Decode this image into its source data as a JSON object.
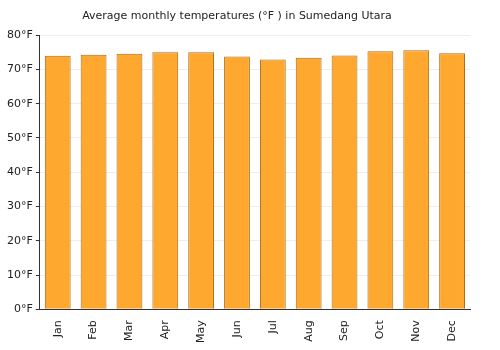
{
  "chart_data": {
    "type": "bar",
    "title": "Average monthly temperatures (°F ) in Sumedang Utara",
    "categories": [
      "Jan",
      "Feb",
      "Mar",
      "Apr",
      "May",
      "Jun",
      "Jul",
      "Aug",
      "Sep",
      "Oct",
      "Nov",
      "Dec"
    ],
    "values": [
      74.0,
      74.3,
      74.6,
      75.0,
      75.0,
      73.8,
      72.9,
      73.4,
      74.1,
      75.3,
      75.6,
      74.7
    ],
    "color": "#ffa830",
    "ylim": [
      0,
      80
    ],
    "yticks": [
      {
        "value": 0,
        "label": "0°F"
      },
      {
        "value": 10,
        "label": "10°F"
      },
      {
        "value": 20,
        "label": "20°F"
      },
      {
        "value": 30,
        "label": "30°F"
      },
      {
        "value": 40,
        "label": "40°F"
      },
      {
        "value": 50,
        "label": "50°F"
      },
      {
        "value": 60,
        "label": "60°F"
      },
      {
        "value": 70,
        "label": "70°F"
      },
      {
        "value": 80,
        "label": "80°F"
      }
    ],
    "grid": true
  }
}
